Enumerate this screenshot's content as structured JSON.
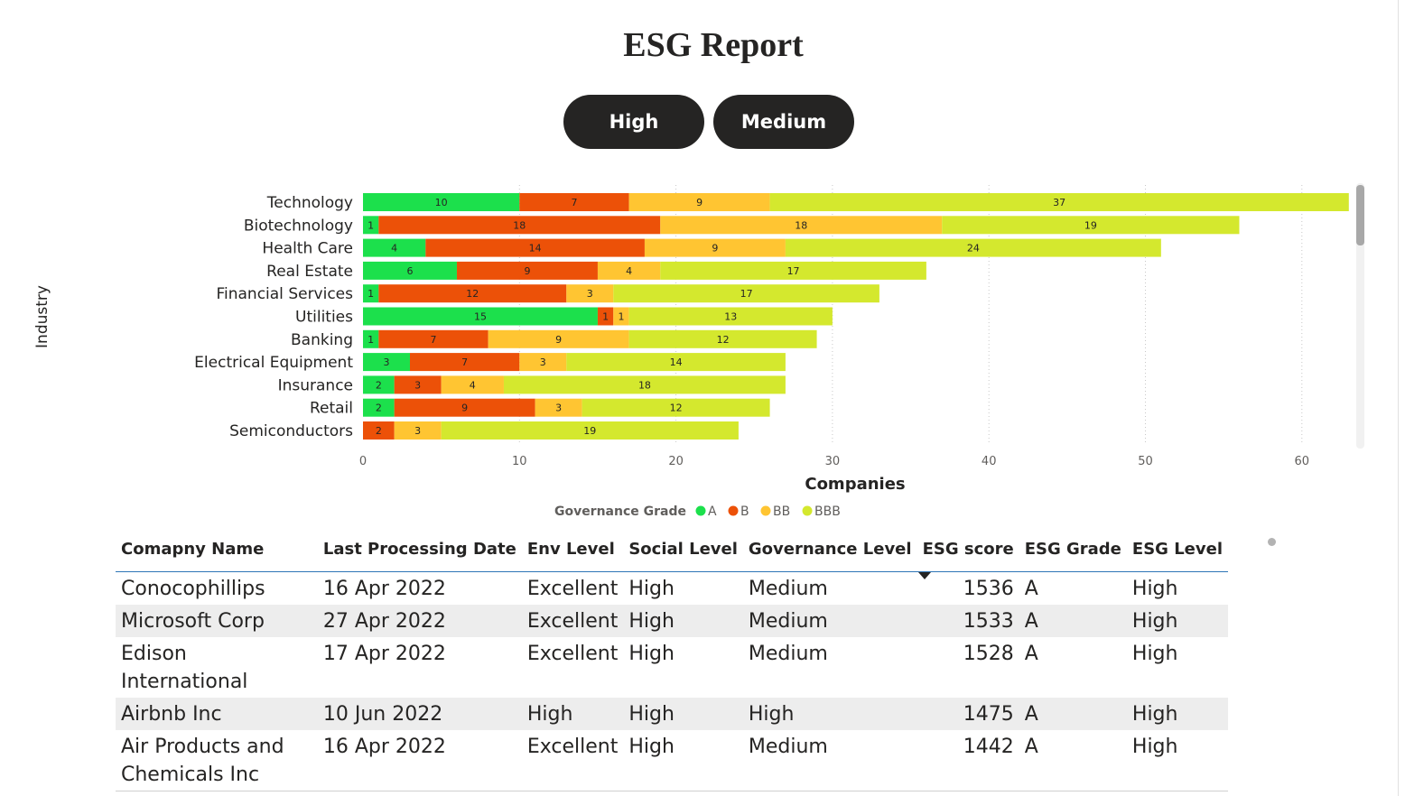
{
  "report": {
    "title": "ESG Report"
  },
  "buttons": {
    "high": "High",
    "medium": "Medium"
  },
  "chart_data": {
    "type": "bar",
    "orientation": "horizontal",
    "stacked": true,
    "categories": [
      "Technology",
      "Biotechnology",
      "Health Care",
      "Real Estate",
      "Financial Services",
      "Utilities",
      "Banking",
      "Electrical Equipment",
      "Insurance",
      "Retail",
      "Semiconductors"
    ],
    "series": [
      {
        "name": "A",
        "color": "#1ce04c",
        "values": [
          10,
          1,
          4,
          6,
          1,
          15,
          1,
          3,
          2,
          2,
          0
        ]
      },
      {
        "name": "B",
        "color": "#ec5108",
        "values": [
          7,
          18,
          14,
          9,
          12,
          1,
          7,
          7,
          3,
          9,
          2
        ]
      },
      {
        "name": "BB",
        "color": "#ffc532",
        "values": [
          9,
          18,
          9,
          4,
          3,
          1,
          9,
          3,
          4,
          3,
          3
        ]
      },
      {
        "name": "BBB",
        "color": "#d4e82e",
        "values": [
          37,
          19,
          24,
          17,
          17,
          13,
          12,
          14,
          18,
          12,
          19
        ]
      }
    ],
    "xlabel": "Companies",
    "ylabel": "Industry",
    "xlim": [
      0,
      63
    ],
    "xticks": [
      0,
      10,
      20,
      30,
      40,
      50,
      60
    ],
    "legend": {
      "title": "Governance Grade",
      "position": "bottom"
    },
    "grid": true
  },
  "table": {
    "headers": {
      "company": "Comapny Name",
      "date": "Last Processing Date",
      "env": "Env Level",
      "social": "Social Level",
      "governance": "Governance Level",
      "score": "ESG score",
      "grade": "ESG Grade",
      "level": "ESG Level"
    },
    "rows": [
      {
        "company": "Conocophillips",
        "date": "16 Apr 2022",
        "env": "Excellent",
        "social": "High",
        "governance": "Medium",
        "score": "1536",
        "grade": "A",
        "level": "High"
      },
      {
        "company": "Microsoft Corp",
        "date": "27 Apr 2022",
        "env": "Excellent",
        "social": "High",
        "governance": "Medium",
        "score": "1533",
        "grade": "A",
        "level": "High"
      },
      {
        "company": "Edison International",
        "date": "17 Apr 2022",
        "env": "Excellent",
        "social": "High",
        "governance": "Medium",
        "score": "1528",
        "grade": "A",
        "level": "High"
      },
      {
        "company": "Airbnb Inc",
        "date": "10 Jun 2022",
        "env": "High",
        "social": "High",
        "governance": "High",
        "score": "1475",
        "grade": "A",
        "level": "High"
      },
      {
        "company": "Air Products and Chemicals Inc",
        "date": "16 Apr 2022",
        "env": "Excellent",
        "social": "High",
        "governance": "Medium",
        "score": "1442",
        "grade": "A",
        "level": "High"
      }
    ]
  }
}
